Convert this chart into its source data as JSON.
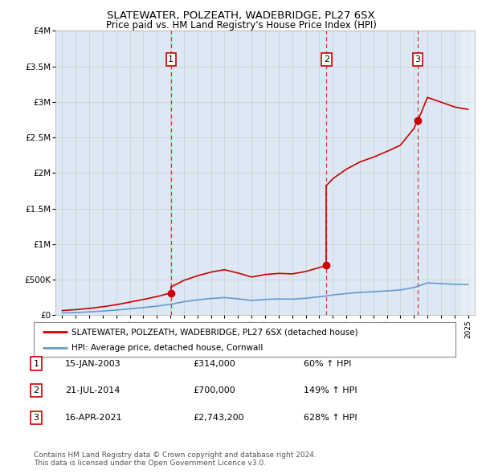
{
  "title": "SLATEWATER, POLZEATH, WADEBRIDGE, PL27 6SX",
  "subtitle": "Price paid vs. HM Land Registry's House Price Index (HPI)",
  "background_color": "#dce9f5",
  "plot_bg_color": "#dce9f5",
  "hpi_years": [
    1995,
    1996,
    1997,
    1998,
    1999,
    2000,
    2001,
    2002,
    2003,
    2004,
    2005,
    2006,
    2007,
    2008,
    2009,
    2010,
    2011,
    2012,
    2013,
    2014,
    2014.5,
    2015,
    2016,
    2017,
    2018,
    2019,
    2020,
    2021,
    2021.5,
    2022,
    2023,
    2024,
    2025
  ],
  "hpi_values": [
    32000,
    38000,
    47000,
    58000,
    72000,
    90000,
    108000,
    128000,
    152000,
    190000,
    215000,
    235000,
    248000,
    230000,
    208000,
    222000,
    228000,
    225000,
    238000,
    260000,
    270000,
    285000,
    305000,
    320000,
    330000,
    342000,
    355000,
    390000,
    420000,
    455000,
    445000,
    435000,
    430000
  ],
  "sale_events": [
    {
      "year": 2003.04,
      "price": 314000
    },
    {
      "year": 2014.54,
      "price": 700000
    },
    {
      "year": 2021.29,
      "price": 2743200
    }
  ],
  "vlines": [
    {
      "x": 2003.04,
      "label": "1"
    },
    {
      "x": 2014.54,
      "label": "2"
    },
    {
      "x": 2021.29,
      "label": "3"
    }
  ],
  "ylim": [
    0,
    4000000
  ],
  "yticks": [
    0,
    500000,
    1000000,
    1500000,
    2000000,
    2500000,
    3000000,
    3500000,
    4000000
  ],
  "ytick_labels": [
    "£0",
    "£500K",
    "£1M",
    "£1.5M",
    "£2M",
    "£2.5M",
    "£3M",
    "£3.5M",
    "£4M"
  ],
  "xlim_start": 1994.5,
  "xlim_end": 2025.5,
  "xticks": [
    1995,
    1996,
    1997,
    1998,
    1999,
    2000,
    2001,
    2002,
    2003,
    2004,
    2005,
    2006,
    2007,
    2008,
    2009,
    2010,
    2011,
    2012,
    2013,
    2014,
    2015,
    2016,
    2017,
    2018,
    2019,
    2020,
    2021,
    2022,
    2023,
    2024,
    2025
  ],
  "legend_entries": [
    {
      "label": "SLATEWATER, POLZEATH, WADEBRIDGE, PL27 6SX (detached house)",
      "color": "#cc0000"
    },
    {
      "label": "HPI: Average price, detached house, Cornwall",
      "color": "#6699cc"
    }
  ],
  "table_rows": [
    {
      "num": "1",
      "date": "15-JAN-2003",
      "price": "£314,000",
      "pct": "60% ↑ HPI"
    },
    {
      "num": "2",
      "date": "21-JUL-2014",
      "price": "£700,000",
      "pct": "149% ↑ HPI"
    },
    {
      "num": "3",
      "date": "16-APR-2021",
      "price": "£2,743,200",
      "pct": "628% ↑ HPI"
    }
  ],
  "footer": "Contains HM Land Registry data © Crown copyright and database right 2024.\nThis data is licensed under the Open Government Licence v3.0.",
  "red_color": "#cc0000",
  "blue_color": "#6699cc",
  "vline_color": "#dd3333",
  "box_color": "#cc0000",
  "grid_color": "#cccccc",
  "hatch_end": 2025.5
}
